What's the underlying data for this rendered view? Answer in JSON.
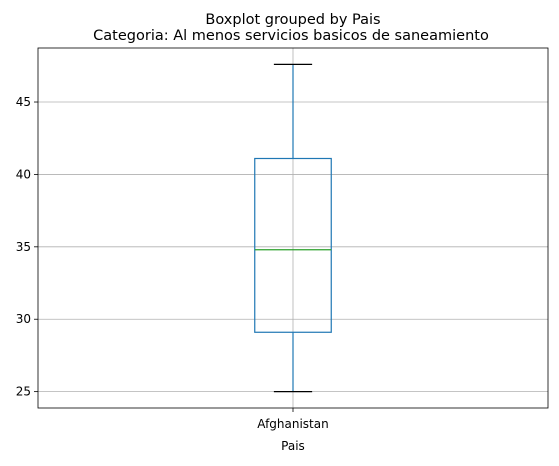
{
  "chart_data": {
    "type": "boxplot",
    "suptitle": "Boxplot grouped by Pais",
    "title": "Categoria: Al menos servicios basicos de saneamiento",
    "xlabel": "Pais",
    "ylabel": "",
    "categories": [
      "Afghanistan"
    ],
    "boxes": [
      {
        "category": "Afghanistan",
        "whisker_low": 25.0,
        "q1": 29.1,
        "median": 34.8,
        "q3": 41.1,
        "whisker_high": 47.6
      }
    ],
    "yticks": [
      25,
      30,
      35,
      40,
      45
    ],
    "ylim": [
      23.87,
      48.73
    ],
    "grid": true,
    "colors": {
      "box": "#1f77b4",
      "median": "#2ca02c",
      "caps": "#000000",
      "grid": "#b0b0b0"
    }
  }
}
